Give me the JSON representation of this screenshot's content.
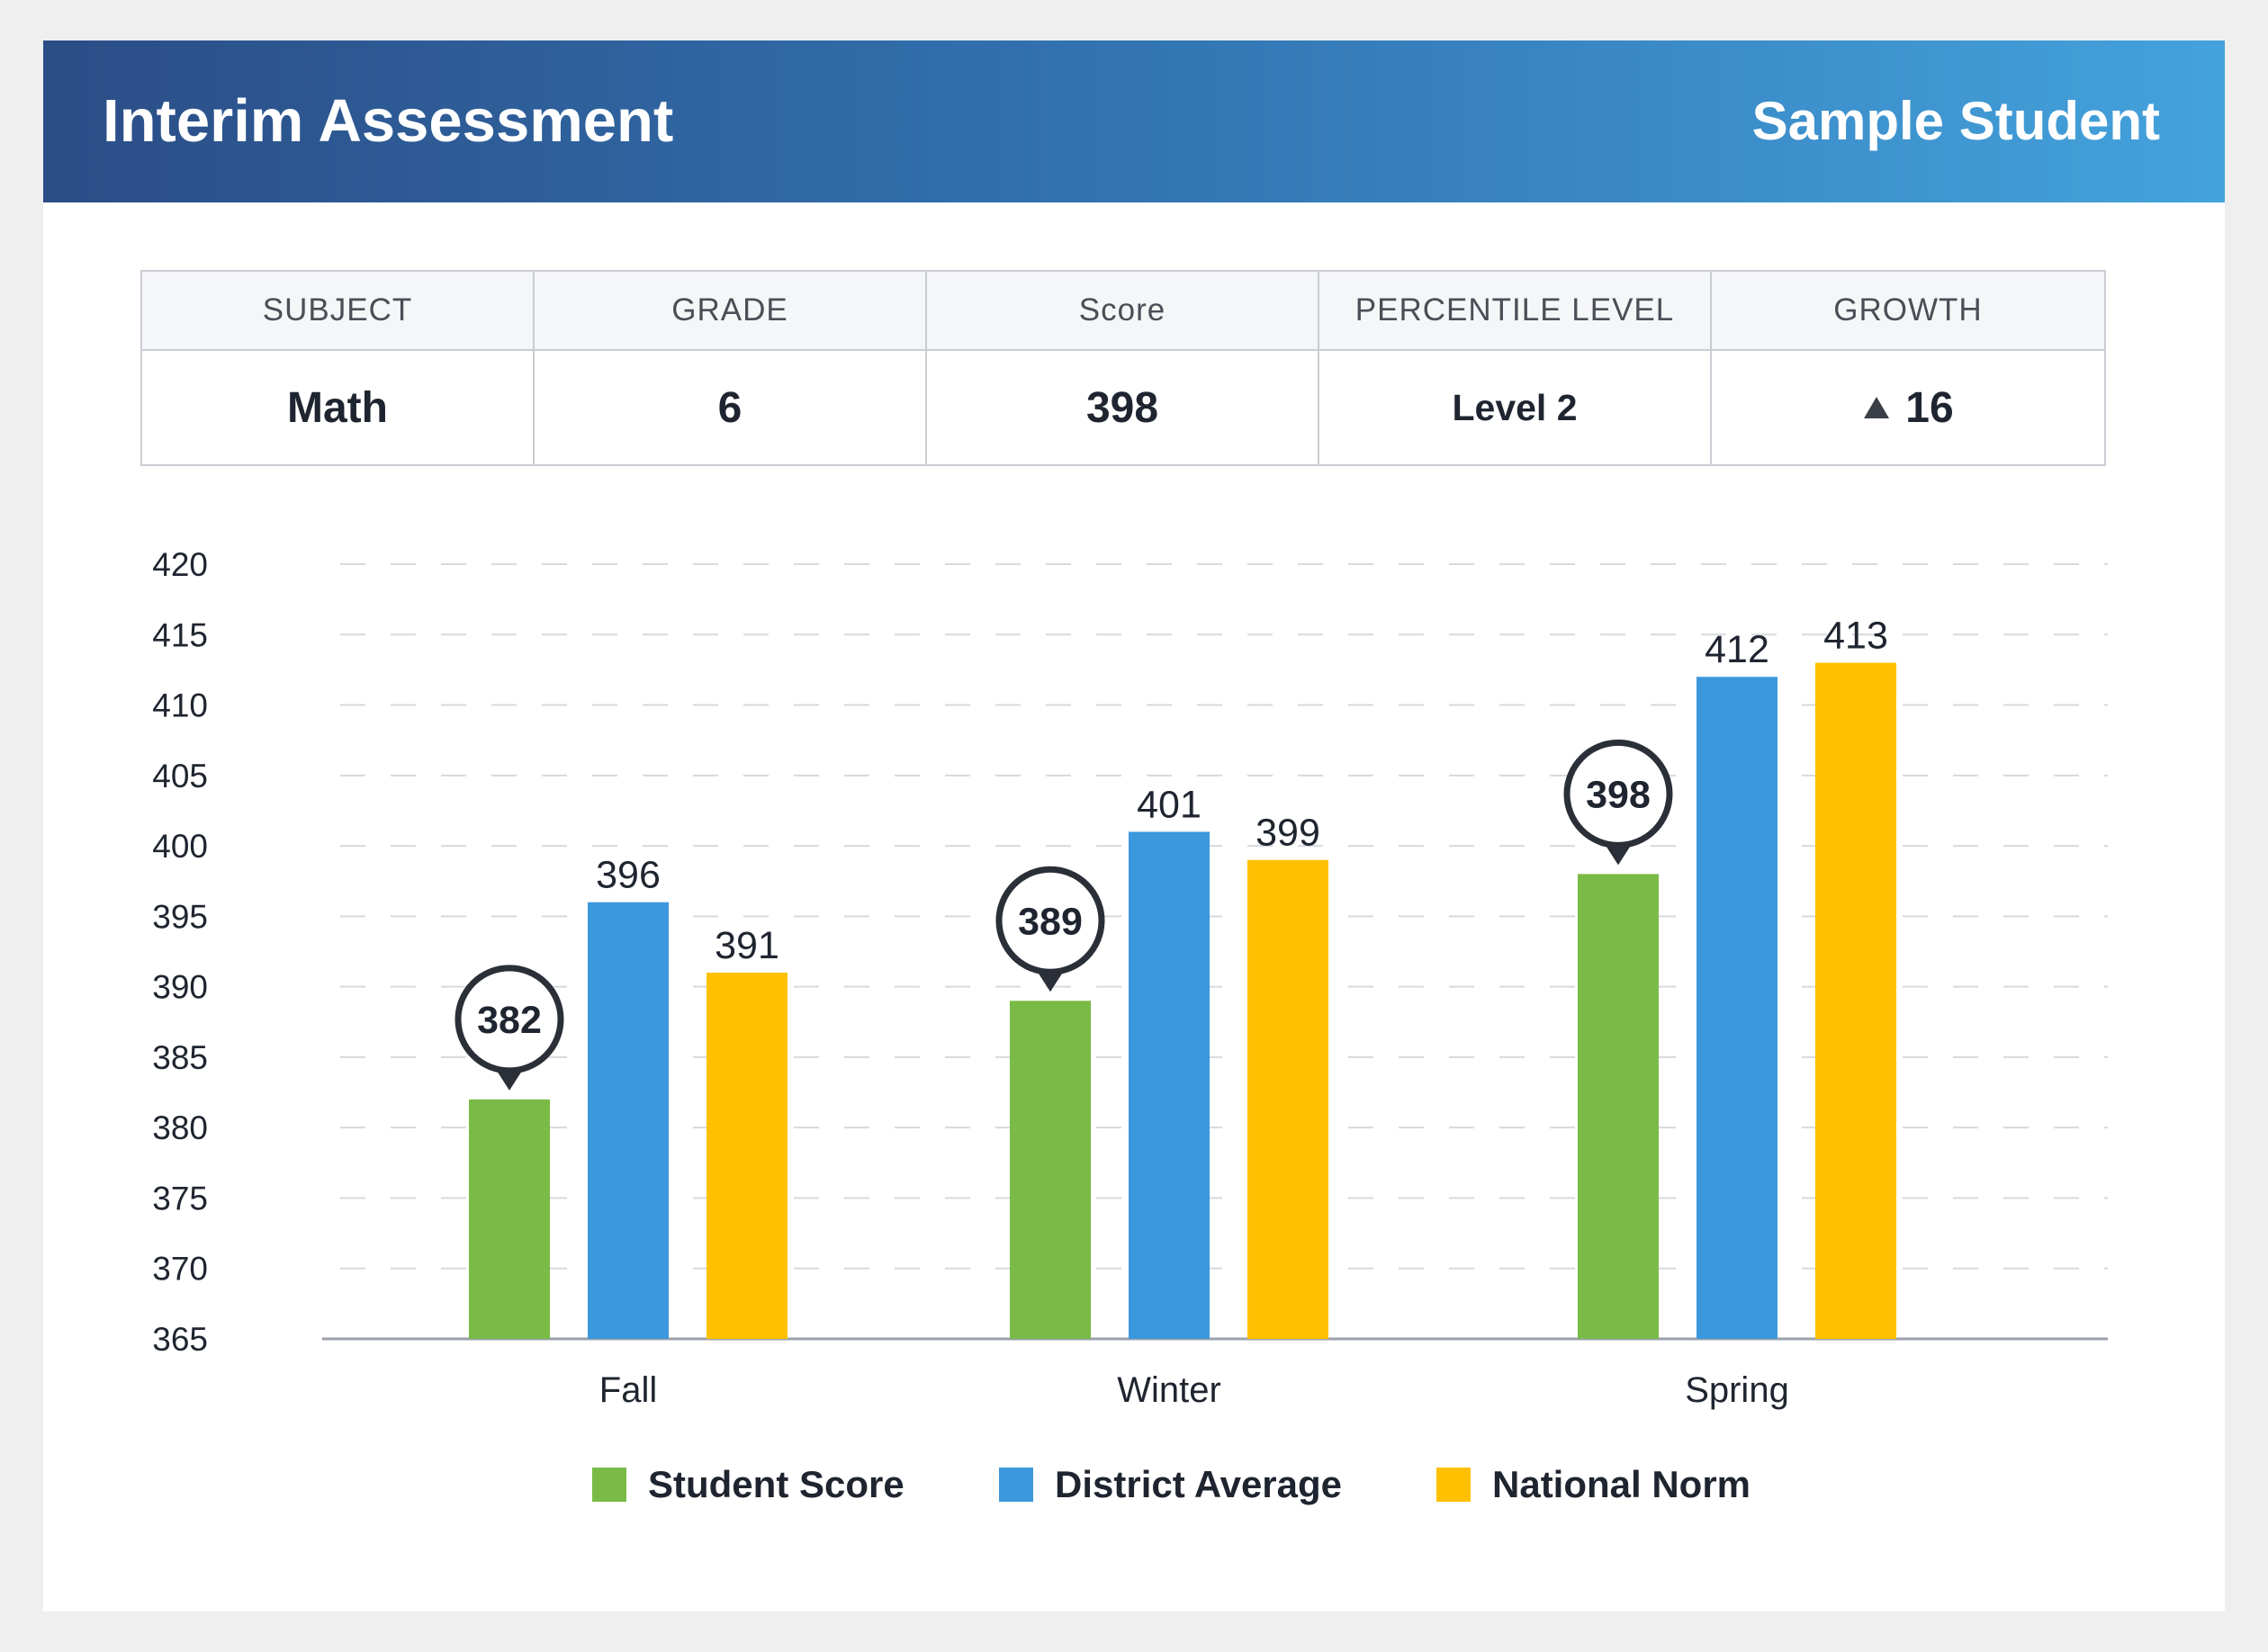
{
  "header": {
    "title": "Interim Assessment",
    "student_name": "Sample Student"
  },
  "summary": {
    "columns": [
      "SUBJECT",
      "GRADE",
      "Score",
      "PERCENTILE LEVEL",
      "GROWTH"
    ],
    "values": {
      "subject": "Math",
      "grade": "6",
      "score": "398",
      "percentile_level": "Level 2",
      "growth": "16"
    },
    "growth_icon": "triangle-up-icon"
  },
  "colors": {
    "student": "#7aba47",
    "district": "#3c98dc",
    "national": "#fec000",
    "axis": "#9aa0ab",
    "grid": "#d6d9de",
    "text": "#1f2530"
  },
  "chart_data": {
    "type": "bar",
    "categories": [
      "Fall",
      "Winter",
      "Spring"
    ],
    "series": [
      {
        "name": "Student Score",
        "values": [
          382,
          389,
          398
        ]
      },
      {
        "name": "District Average",
        "values": [
          396,
          401,
          412
        ]
      },
      {
        "name": "National Norm",
        "values": [
          391,
          399,
          413
        ]
      }
    ],
    "ylim": [
      365,
      420
    ],
    "yticks": [
      365,
      370,
      375,
      380,
      385,
      390,
      395,
      400,
      405,
      410,
      415,
      420
    ],
    "grid": true,
    "legend_position": "bottom",
    "student_callout": true
  }
}
